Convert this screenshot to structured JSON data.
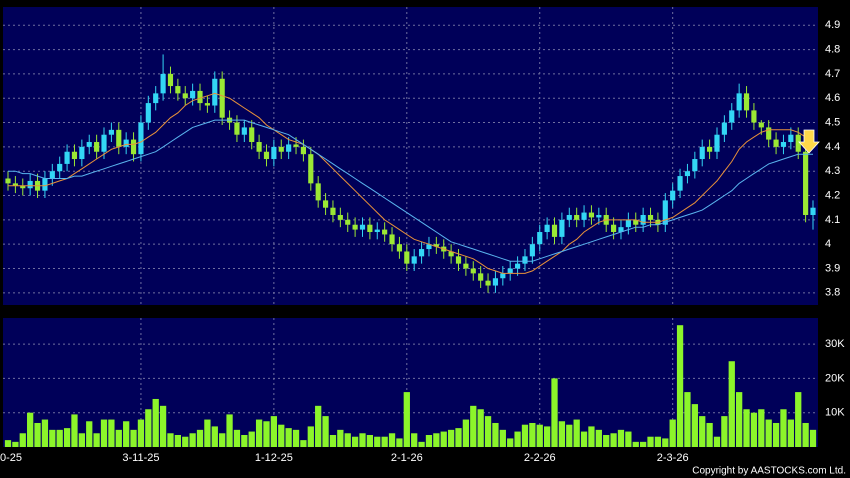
{
  "chart_data": {
    "type": "candlestick",
    "categories": [
      "0-25",
      null,
      null,
      null,
      null,
      null,
      null,
      null,
      null,
      null,
      null,
      null,
      null,
      null,
      null,
      null,
      null,
      null,
      "3-11-25",
      null,
      null,
      null,
      null,
      null,
      null,
      null,
      null,
      null,
      null,
      null,
      null,
      null,
      null,
      null,
      null,
      null,
      "1-12-25",
      null,
      null,
      null,
      null,
      null,
      null,
      null,
      null,
      null,
      null,
      null,
      null,
      null,
      null,
      null,
      null,
      null,
      "2-1-26",
      null,
      null,
      null,
      null,
      null,
      null,
      null,
      null,
      null,
      null,
      null,
      null,
      null,
      null,
      null,
      null,
      null,
      "2-2-26",
      null,
      null,
      null,
      null,
      null,
      null,
      null,
      null,
      null,
      null,
      null,
      null,
      null,
      null,
      null,
      null,
      null,
      "2-3-26",
      null,
      null,
      null,
      null,
      null,
      null,
      null,
      null,
      null,
      null,
      null,
      null,
      null,
      null,
      null,
      null,
      null,
      null,
      null
    ],
    "open": [
      4.27,
      4.25,
      4.24,
      4.23,
      4.26,
      4.22,
      4.27,
      4.3,
      4.33,
      4.38,
      4.35,
      4.4,
      4.42,
      4.38,
      4.45,
      4.47,
      4.4,
      4.43,
      4.37,
      4.5,
      4.58,
      4.62,
      4.7,
      4.65,
      4.62,
      4.6,
      4.63,
      4.58,
      4.57,
      4.68,
      4.52,
      4.5,
      4.45,
      4.48,
      4.42,
      4.38,
      4.35,
      4.4,
      4.38,
      4.41,
      4.4,
      4.37,
      4.25,
      4.18,
      4.15,
      4.12,
      4.1,
      4.08,
      4.06,
      4.08,
      4.05,
      4.06,
      4.04,
      4.0,
      3.97,
      3.92,
      3.95,
      3.98,
      4.0,
      3.99,
      3.97,
      3.95,
      3.92,
      3.9,
      3.88,
      3.85,
      3.83,
      3.86,
      3.88,
      3.9,
      3.92,
      3.95,
      4.0,
      4.05,
      4.08,
      4.03,
      4.1,
      4.12,
      4.1,
      4.13,
      4.11,
      4.12,
      4.08,
      4.05,
      4.07,
      4.1,
      4.08,
      4.12,
      4.1,
      4.08,
      4.18,
      4.22,
      4.28,
      4.3,
      4.35,
      4.4,
      4.38,
      4.45,
      4.5,
      4.55,
      4.62,
      4.55,
      4.5,
      4.48,
      4.43,
      4.4,
      4.42,
      4.45,
      4.38,
      4.12
    ],
    "high": [
      4.3,
      4.28,
      4.27,
      4.29,
      4.29,
      4.3,
      4.33,
      4.36,
      4.41,
      4.41,
      4.43,
      4.45,
      4.45,
      4.48,
      4.5,
      4.5,
      4.46,
      4.46,
      4.53,
      4.61,
      4.65,
      4.78,
      4.73,
      4.68,
      4.65,
      4.66,
      4.66,
      4.61,
      4.71,
      4.71,
      4.55,
      4.53,
      4.51,
      4.51,
      4.45,
      4.41,
      4.43,
      4.43,
      4.44,
      4.44,
      4.43,
      4.4,
      4.28,
      4.21,
      4.18,
      4.15,
      4.13,
      4.11,
      4.11,
      4.11,
      4.09,
      4.09,
      4.07,
      4.03,
      4.0,
      3.98,
      4.01,
      4.03,
      4.03,
      4.02,
      4.0,
      3.98,
      3.95,
      3.93,
      3.91,
      3.88,
      3.89,
      3.91,
      3.93,
      3.95,
      3.98,
      4.03,
      4.08,
      4.11,
      4.11,
      4.13,
      4.15,
      4.15,
      4.16,
      4.16,
      4.15,
      4.15,
      4.11,
      4.1,
      4.13,
      4.13,
      4.15,
      4.15,
      4.13,
      4.21,
      4.25,
      4.31,
      4.33,
      4.38,
      4.43,
      4.43,
      4.48,
      4.53,
      4.58,
      4.66,
      4.65,
      4.58,
      4.51,
      4.51,
      4.46,
      4.45,
      4.48,
      4.48,
      4.41,
      4.18
    ],
    "low": [
      4.22,
      4.21,
      4.2,
      4.2,
      4.19,
      4.19,
      4.24,
      4.27,
      4.3,
      4.32,
      4.32,
      4.37,
      4.35,
      4.35,
      4.42,
      4.37,
      4.37,
      4.34,
      4.34,
      4.47,
      4.55,
      4.59,
      4.62,
      4.59,
      4.57,
      4.57,
      4.55,
      4.54,
      4.54,
      4.49,
      4.47,
      4.42,
      4.42,
      4.39,
      4.35,
      4.32,
      4.32,
      4.35,
      4.35,
      4.37,
      4.34,
      4.22,
      4.15,
      4.12,
      4.09,
      4.07,
      4.05,
      4.03,
      4.03,
      4.02,
      4.02,
      4.01,
      3.97,
      3.94,
      3.89,
      3.89,
      3.92,
      3.95,
      3.96,
      3.94,
      3.92,
      3.89,
      3.87,
      3.85,
      3.82,
      3.8,
      3.8,
      3.83,
      3.85,
      3.87,
      3.89,
      3.92,
      3.97,
      4.02,
      4.0,
      4.0,
      4.07,
      4.07,
      4.07,
      4.08,
      4.08,
      4.05,
      4.02,
      4.02,
      4.04,
      4.05,
      4.05,
      4.07,
      4.05,
      4.05,
      4.15,
      4.19,
      4.25,
      4.27,
      4.32,
      4.35,
      4.35,
      4.42,
      4.47,
      4.52,
      4.52,
      4.47,
      4.45,
      4.4,
      4.37,
      4.37,
      4.39,
      4.35,
      4.09,
      4.06
    ],
    "close": [
      4.25,
      4.24,
      4.23,
      4.26,
      4.22,
      4.27,
      4.3,
      4.33,
      4.38,
      4.35,
      4.4,
      4.42,
      4.38,
      4.45,
      4.47,
      4.4,
      4.43,
      4.37,
      4.5,
      4.58,
      4.62,
      4.7,
      4.65,
      4.62,
      4.6,
      4.63,
      4.58,
      4.57,
      4.68,
      4.52,
      4.5,
      4.45,
      4.48,
      4.42,
      4.38,
      4.35,
      4.4,
      4.38,
      4.41,
      4.4,
      4.37,
      4.25,
      4.18,
      4.15,
      4.12,
      4.1,
      4.08,
      4.06,
      4.08,
      4.05,
      4.06,
      4.04,
      4.0,
      3.97,
      3.92,
      3.95,
      3.98,
      4.0,
      3.99,
      3.97,
      3.95,
      3.92,
      3.9,
      3.88,
      3.85,
      3.83,
      3.86,
      3.88,
      3.9,
      3.92,
      3.95,
      4.0,
      4.05,
      4.08,
      4.03,
      4.1,
      4.12,
      4.1,
      4.13,
      4.11,
      4.12,
      4.08,
      4.05,
      4.07,
      4.1,
      4.08,
      4.12,
      4.1,
      4.08,
      4.18,
      4.22,
      4.28,
      4.3,
      4.35,
      4.4,
      4.38,
      4.45,
      4.5,
      4.55,
      4.62,
      4.55,
      4.5,
      4.48,
      4.43,
      4.4,
      4.42,
      4.45,
      4.38,
      4.12,
      4.15
    ],
    "ma_short": {
      "color": "#e8913a",
      "values": [
        4.24,
        4.24,
        4.24,
        4.24,
        4.24,
        4.24,
        4.25,
        4.26,
        4.27,
        4.29,
        4.31,
        4.33,
        4.35,
        4.37,
        4.39,
        4.4,
        4.41,
        4.41,
        4.42,
        4.44,
        4.46,
        4.49,
        4.52,
        4.54,
        4.57,
        4.59,
        4.6,
        4.61,
        4.62,
        4.61,
        4.6,
        4.58,
        4.56,
        4.54,
        4.52,
        4.49,
        4.47,
        4.45,
        4.43,
        4.42,
        4.41,
        4.39,
        4.37,
        4.34,
        4.31,
        4.28,
        4.25,
        4.22,
        4.19,
        4.16,
        4.13,
        4.1,
        4.08,
        4.06,
        4.04,
        4.02,
        4.01,
        4.0,
        3.99,
        3.98,
        3.97,
        3.96,
        3.95,
        3.94,
        3.92,
        3.9,
        3.89,
        3.88,
        3.88,
        3.88,
        3.88,
        3.89,
        3.91,
        3.93,
        3.95,
        3.97,
        4.0,
        4.02,
        4.05,
        4.07,
        4.09,
        4.1,
        4.1,
        4.1,
        4.1,
        4.1,
        4.09,
        4.09,
        4.09,
        4.1,
        4.11,
        4.13,
        4.15,
        4.17,
        4.2,
        4.23,
        4.26,
        4.3,
        4.34,
        4.39,
        4.42,
        4.44,
        4.46,
        4.47,
        4.47,
        4.47,
        4.47,
        4.46,
        4.44,
        4.42
      ]
    },
    "ma_long": {
      "color": "#5ab4ee",
      "values": [
        4.3,
        4.3,
        4.29,
        4.29,
        4.28,
        4.27,
        4.27,
        4.27,
        4.27,
        4.28,
        4.28,
        4.29,
        4.3,
        4.31,
        4.32,
        4.33,
        4.34,
        4.35,
        4.36,
        4.37,
        4.38,
        4.4,
        4.42,
        4.44,
        4.46,
        4.48,
        4.49,
        4.5,
        4.51,
        4.51,
        4.51,
        4.51,
        4.51,
        4.5,
        4.49,
        4.48,
        4.47,
        4.46,
        4.45,
        4.43,
        4.41,
        4.39,
        4.37,
        4.35,
        4.33,
        4.31,
        4.29,
        4.27,
        4.25,
        4.23,
        4.21,
        4.19,
        4.17,
        4.15,
        4.13,
        4.11,
        4.09,
        4.07,
        4.05,
        4.03,
        4.01,
        4.0,
        3.99,
        3.98,
        3.97,
        3.96,
        3.95,
        3.94,
        3.93,
        3.93,
        3.93,
        3.93,
        3.94,
        3.95,
        3.96,
        3.97,
        3.98,
        3.99,
        4.0,
        4.01,
        4.02,
        4.03,
        4.04,
        4.05,
        4.06,
        4.07,
        4.07,
        4.08,
        4.08,
        4.09,
        4.1,
        4.11,
        4.12,
        4.13,
        4.14,
        4.16,
        4.18,
        4.2,
        4.22,
        4.25,
        4.27,
        4.29,
        4.31,
        4.33,
        4.34,
        4.35,
        4.36,
        4.37,
        4.37,
        4.37
      ]
    },
    "volume": [
      2000,
      1500,
      4000,
      10000,
      7000,
      8000,
      5000,
      5000,
      5500,
      9500,
      4000,
      7500,
      4000,
      8000,
      8000,
      5000,
      7500,
      5000,
      8000,
      11000,
      14000,
      12000,
      4000,
      3500,
      3000,
      4000,
      5000,
      8000,
      6000,
      4000,
      9500,
      5000,
      3500,
      4500,
      8000,
      7500,
      9000,
      6500,
      5500,
      5000,
      2000,
      6000,
      12000,
      9000,
      3500,
      5000,
      4000,
      3000,
      4000,
      3500,
      3000,
      3000,
      4000,
      2500,
      16000,
      4000,
      1500,
      3500,
      4000,
      4500,
      5000,
      5500,
      8000,
      12000,
      11000,
      9000,
      7000,
      5000,
      2500,
      4500,
      6500,
      7000,
      6500,
      6000,
      20000,
      7500,
      6500,
      8000,
      4500,
      6000,
      5000,
      3500,
      4000,
      5000,
      4500,
      1500,
      1500,
      3000,
      3000,
      2500,
      8000,
      35500,
      16000,
      12500,
      9000,
      7000,
      3000,
      9000,
      25000,
      16000,
      11000,
      10000,
      11000,
      8000,
      7000,
      11000,
      8000,
      16000,
      7000,
      5000
    ],
    "up_color": "#33d6f5",
    "down_color": "#9be834",
    "volume_color": "#8cf52a",
    "ylim": [
      3.75,
      4.975
    ],
    "yticks": [
      3.8,
      3.9,
      4,
      4.1,
      4.2,
      4.3,
      4.4,
      4.5,
      4.6,
      4.7,
      4.8,
      4.9
    ],
    "vlim": [
      0,
      37600
    ],
    "vticks": [
      {
        "value": 10000,
        "label": "10K"
      },
      {
        "value": 20000,
        "label": "20K"
      },
      {
        "value": 30000,
        "label": "30K"
      }
    ],
    "grid": true,
    "copyright": "Copyright by AASTOCKS.com Ltd."
  }
}
